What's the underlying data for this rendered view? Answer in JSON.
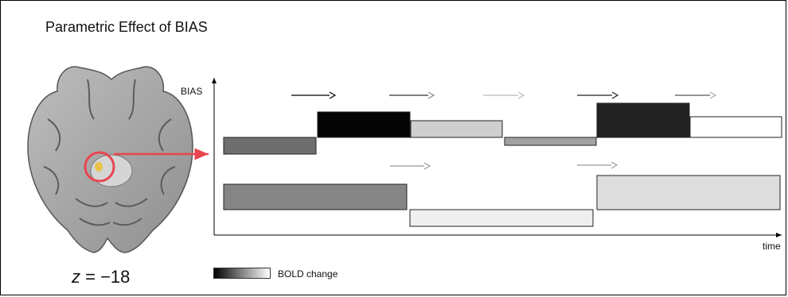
{
  "title": "Parametric Effect of BIAS",
  "slice_label": {
    "var": "z",
    "rest": " = −18"
  },
  "y_axis_label": "BIAS",
  "x_axis_label": "time",
  "legend": {
    "label": "BOLD change"
  },
  "colors": {
    "highlight": "#e8454f",
    "activation": "#e8c24a",
    "axis": "#000000"
  },
  "trials_upper": [
    {
      "level": "low",
      "shade": "#6e6e6e"
    },
    {
      "level": "high",
      "shade": "#050505"
    },
    {
      "level": "mid",
      "shade": "#cfcfcf"
    },
    {
      "level": "low",
      "shade": "#a2a2a2"
    },
    {
      "level": "high",
      "shade": "#222222"
    },
    {
      "level": "mid",
      "shade": "#ffffff"
    }
  ],
  "trials_lower": [
    {
      "level": "high",
      "shade": "#858585"
    },
    {
      "level": "low",
      "shade": "#efefef"
    },
    {
      "level": "high",
      "shade": "#dddddd"
    }
  ]
}
